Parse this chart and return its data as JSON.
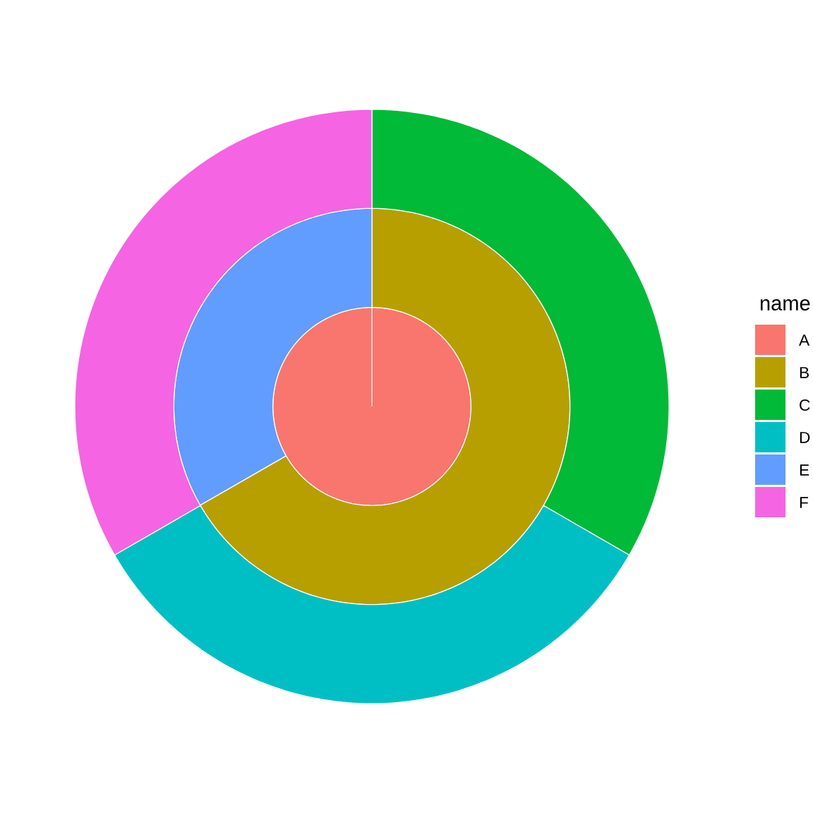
{
  "chart_data": {
    "type": "pie",
    "categories": [
      "A",
      "B",
      "C",
      "D",
      "E",
      "F"
    ],
    "colors": [
      "#F8766D",
      "#B79F00",
      "#00BA38",
      "#00BFC4",
      "#619CFF",
      "#F564E3"
    ],
    "series": [
      {
        "values": [
          100,
          null,
          null,
          null,
          null,
          null
        ]
      },
      {
        "values": [
          null,
          66.7,
          null,
          null,
          33.3,
          null
        ]
      },
      {
        "values": [
          null,
          null,
          33.3,
          33.3,
          null,
          33.3
        ]
      }
    ],
    "legend_title": "name",
    "legend": "right"
  }
}
